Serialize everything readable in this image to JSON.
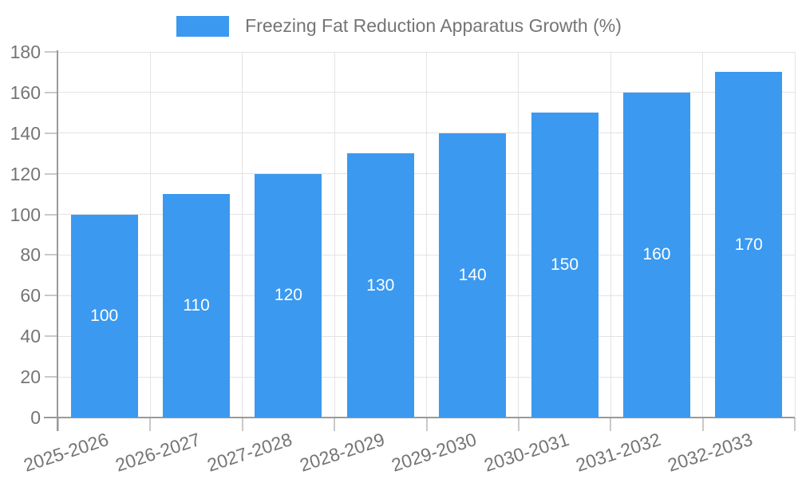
{
  "chart_data": {
    "type": "bar",
    "title": "Freezing Fat Reduction Apparatus Growth (%)",
    "categories": [
      "2025-2026",
      "2026-2027",
      "2027-2028",
      "2028-2029",
      "2029-2030",
      "2030-2031",
      "2031-2032",
      "2032-2033"
    ],
    "values": [
      100,
      110,
      120,
      130,
      140,
      150,
      160,
      170
    ],
    "xlabel": "",
    "ylabel": "",
    "ylim": [
      0,
      180
    ],
    "ytick_step": 20,
    "yticks": [
      0,
      20,
      40,
      60,
      80,
      100,
      120,
      140,
      160,
      180
    ],
    "grid": true,
    "legend_position": "top-center",
    "bar_labels_visible": true
  },
  "colors": {
    "bar": "#3b99f0",
    "bar_label": "#ffffff",
    "axis_text": "#757575",
    "axis_line": "#9a9a9a",
    "tick": "#c9c9c9",
    "grid_line": "#e3e3e3",
    "background": "#ffffff"
  }
}
